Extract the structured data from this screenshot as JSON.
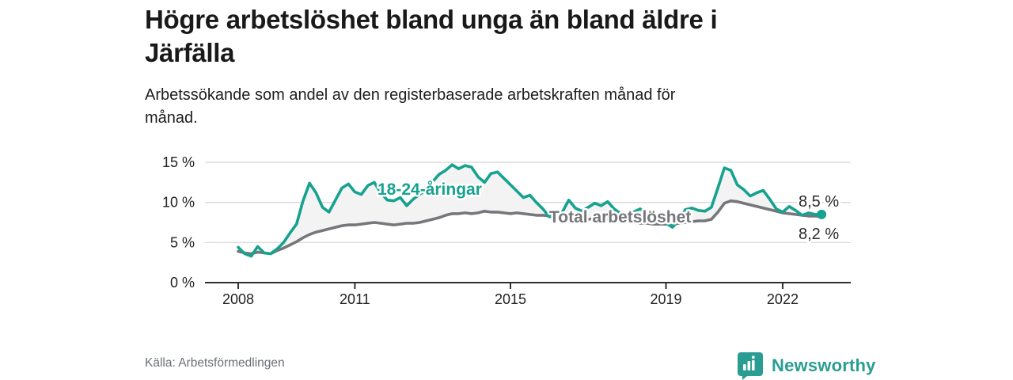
{
  "header": {
    "title_line1": "Högre arbetslöshet bland unga än bland äldre i",
    "title_line2": "Järfälla",
    "subtitle_line1": "Arbetssökande som andel av den registerbaserade arbetskraften månad för",
    "subtitle_line2": "månad."
  },
  "footer": {
    "source": "Källa: Arbetsförmedlingen",
    "brand": "Newsworthy",
    "brand_icon": "newsworthy-speech-bubble-bars-icon"
  },
  "colors": {
    "young": "#16a28f",
    "total": "#76767b",
    "band": "#f3f3f4",
    "axis": "#2f2f2f",
    "grid": "#d9d9d9",
    "tick_text": "#222222",
    "value_label": "#2b2b2b",
    "logo": "#2a9d93"
  },
  "chart_data": {
    "type": "line",
    "title": "Högre arbetslöshet bland unga än bland äldre i Järfälla",
    "subtitle": "Arbetssökande som andel av den registerbaserade arbetskraften månad för månad.",
    "xlabel": "",
    "ylabel": "",
    "x_unit": "year (monthly observations)",
    "y_unit": "%",
    "x_start": 2008,
    "x_step": 0.16667,
    "xlim": [
      2007.15,
      2023.75
    ],
    "ylim": [
      0,
      15.5
    ],
    "grid": "horizontal",
    "legend": "inline-labels",
    "x_ticks": [
      {
        "v": 2008,
        "label": "2008"
      },
      {
        "v": 2011,
        "label": "2011"
      },
      {
        "v": 2015,
        "label": "2015"
      },
      {
        "v": 2019,
        "label": "2019"
      },
      {
        "v": 2022,
        "label": "2022"
      }
    ],
    "y_ticks": [
      {
        "v": 0,
        "label": "0 %"
      },
      {
        "v": 5,
        "label": "5 %"
      },
      {
        "v": 10,
        "label": "10 %"
      },
      {
        "v": 15,
        "label": "15 %"
      }
    ],
    "series": [
      {
        "name": "18-24-åringar",
        "color_key": "young",
        "end_label": "8,5 %",
        "end_value": 8.5,
        "values": [
          4.4,
          3.6,
          3.3,
          4.5,
          3.7,
          3.6,
          4.2,
          5.0,
          6.2,
          7.3,
          10.2,
          12.4,
          11.2,
          9.4,
          8.8,
          10.3,
          11.8,
          12.3,
          11.3,
          11.0,
          12.1,
          12.5,
          11.2,
          10.3,
          10.2,
          10.6,
          9.6,
          10.4,
          11.0,
          11.6,
          12.6,
          13.5,
          14.0,
          14.7,
          14.2,
          14.6,
          14.4,
          13.2,
          12.5,
          13.6,
          13.8,
          13.0,
          12.2,
          11.4,
          10.6,
          10.9,
          10.0,
          9.2,
          8.2,
          8.5,
          8.8,
          10.3,
          9.3,
          8.9,
          9.4,
          9.9,
          9.6,
          10.1,
          9.2,
          8.6,
          8.3,
          8.8,
          9.2,
          8.7,
          8.2,
          7.9,
          7.4,
          6.9,
          7.8,
          9.1,
          9.3,
          9.0,
          8.9,
          9.4,
          11.8,
          14.3,
          14.0,
          12.2,
          11.6,
          10.8,
          11.2,
          11.5,
          10.4,
          9.2,
          8.8,
          9.5,
          9.0,
          8.4,
          8.7,
          8.5,
          8.5
        ]
      },
      {
        "name": "Total arbetslöshet",
        "color_key": "total",
        "end_label": "8,2 %",
        "end_value": 8.2,
        "values": [
          3.9,
          3.7,
          3.6,
          3.8,
          3.7,
          3.6,
          4.0,
          4.3,
          4.7,
          5.1,
          5.6,
          6.0,
          6.3,
          6.5,
          6.7,
          6.9,
          7.1,
          7.2,
          7.2,
          7.3,
          7.4,
          7.5,
          7.4,
          7.3,
          7.2,
          7.3,
          7.4,
          7.4,
          7.5,
          7.7,
          7.9,
          8.1,
          8.4,
          8.6,
          8.6,
          8.7,
          8.6,
          8.7,
          8.9,
          8.8,
          8.8,
          8.7,
          8.6,
          8.7,
          8.6,
          8.5,
          8.4,
          8.4,
          8.3,
          8.2,
          8.1,
          8.1,
          8.0,
          8.0,
          7.9,
          8.0,
          7.9,
          7.9,
          7.8,
          7.7,
          7.6,
          7.5,
          7.4,
          7.4,
          7.3,
          7.3,
          7.3,
          7.3,
          7.4,
          7.5,
          7.6,
          7.7,
          7.7,
          7.9,
          8.8,
          9.9,
          10.2,
          10.1,
          9.9,
          9.7,
          9.5,
          9.3,
          9.1,
          8.9,
          8.7,
          8.6,
          8.5,
          8.4,
          8.3,
          8.3,
          8.2
        ]
      }
    ]
  }
}
